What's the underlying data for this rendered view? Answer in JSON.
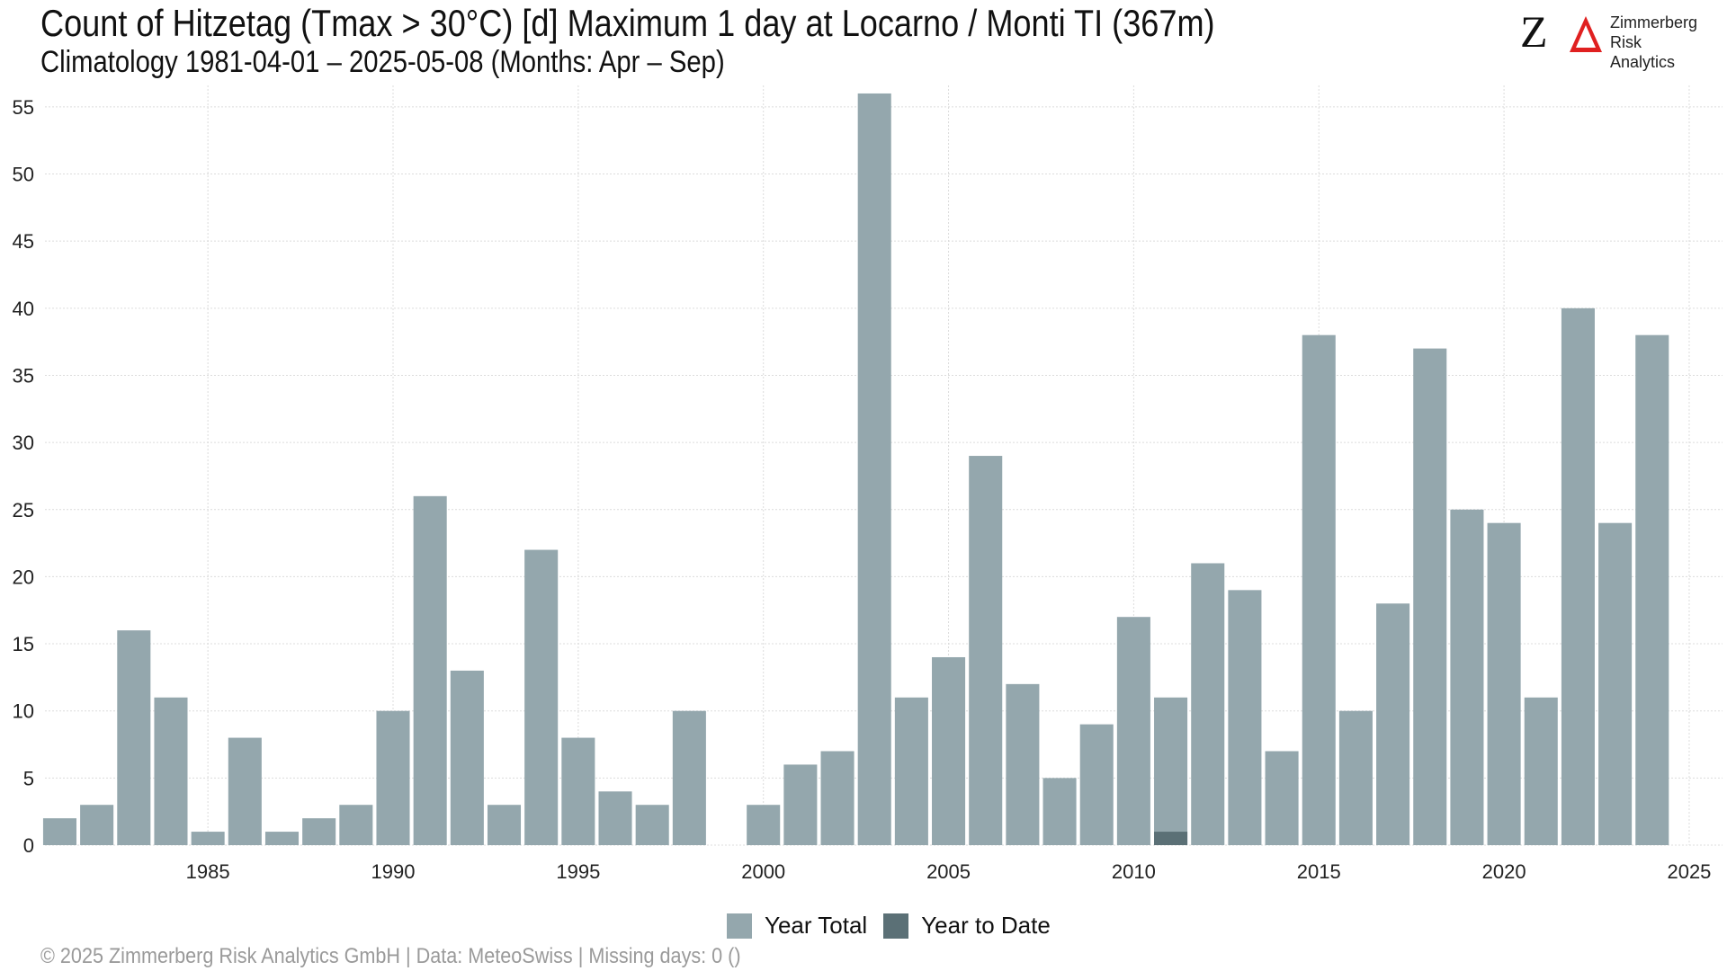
{
  "title": "Count of Hitzetag (Tmax > 30°C) [d] Maximum 1 day at Locarno / Monti  TI (367m)",
  "subtitle": "Climatology 1981-04-01 – 2025-05-08 (Months: Apr – Sep)",
  "logo": {
    "mark": "Z",
    "name_line1": "Zimmerberg",
    "name_line2": "Risk Analytics"
  },
  "legend": [
    {
      "label": "Year Total",
      "color": "#94a7ad"
    },
    {
      "label": "Year to Date",
      "color": "#5b7076"
    }
  ],
  "caption": "©  2025 Zimmerberg Risk Analytics GmbH | Data: MeteoSwiss | Missing days: 0 ()",
  "chart_data": {
    "type": "bar",
    "x": [
      1981,
      1982,
      1983,
      1984,
      1985,
      1986,
      1987,
      1988,
      1989,
      1990,
      1991,
      1992,
      1993,
      1994,
      1995,
      1996,
      1997,
      1998,
      1999,
      2000,
      2001,
      2002,
      2003,
      2004,
      2005,
      2006,
      2007,
      2008,
      2009,
      2010,
      2011,
      2012,
      2013,
      2014,
      2015,
      2016,
      2017,
      2018,
      2019,
      2020,
      2021,
      2022,
      2023,
      2024
    ],
    "series": [
      {
        "name": "Year Total",
        "color": "#94a7ad",
        "values": [
          2,
          3,
          16,
          11,
          1,
          8,
          1,
          2,
          3,
          10,
          26,
          13,
          3,
          22,
          8,
          4,
          3,
          10,
          0,
          3,
          6,
          7,
          56,
          11,
          14,
          29,
          12,
          5,
          9,
          17,
          11,
          21,
          19,
          7,
          38,
          10,
          18,
          37,
          25,
          24,
          11,
          40,
          24,
          38
        ]
      },
      {
        "name": "Year to Date",
        "color": "#5b7076",
        "points": [
          {
            "x": 2011,
            "y": 1
          }
        ]
      }
    ],
    "xticks": [
      1985,
      1990,
      1995,
      2000,
      2005,
      2010,
      2015,
      2020,
      2025
    ],
    "yticks": [
      0,
      5,
      10,
      15,
      20,
      25,
      30,
      35,
      40,
      45,
      50,
      55
    ],
    "xlim": [
      1980.6,
      2025.9
    ],
    "ylim": [
      0,
      56.6
    ],
    "grid": true,
    "legend_position": "bottom"
  }
}
